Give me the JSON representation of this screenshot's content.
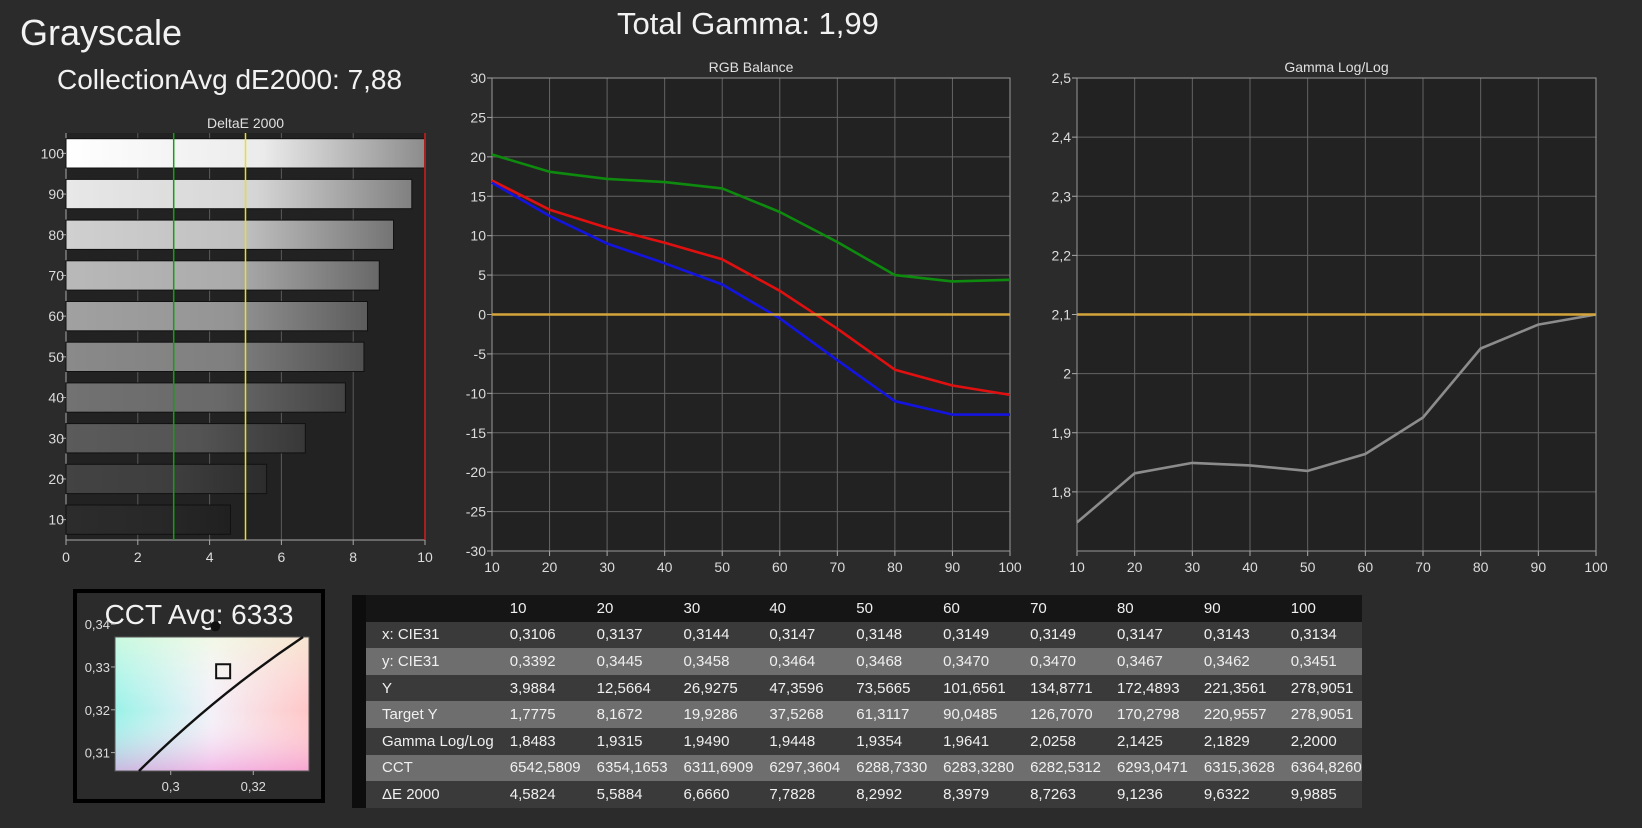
{
  "page": {
    "title": "Grayscale",
    "total_gamma": "Total Gamma: 1,99",
    "collection_avg": "CollectionAvg dE2000: 7,88",
    "cct_avg": "CCT Avg: 6333"
  },
  "colors": {
    "background": "#2b2b2b",
    "plot_bg": "#222222",
    "red": "#e01010",
    "green": "#0e8a0e",
    "blue": "#1414e0",
    "target": "#d4a53a",
    "gamma_line": "#8c8c8c",
    "de_green_line": "#10a010",
    "de_yellow_line": "#e8e020",
    "de_red_line": "#d02020"
  },
  "chart_data": [
    {
      "id": "deltae",
      "type": "bar",
      "title": "DeltaE 2000",
      "orientation": "horizontal",
      "categories": [
        "100",
        "90",
        "80",
        "70",
        "60",
        "50",
        "40",
        "30",
        "20",
        "10"
      ],
      "values": [
        9.9885,
        9.6322,
        9.1236,
        8.7263,
        8.3979,
        8.2992,
        7.7828,
        6.666,
        5.5884,
        4.5824
      ],
      "gray_levels": [
        100,
        90,
        80,
        70,
        60,
        50,
        40,
        30,
        20,
        10
      ],
      "xlim": [
        0,
        10
      ],
      "xticks": [
        "0",
        "2",
        "4",
        "6",
        "8",
        "10"
      ],
      "reference_lines": [
        3,
        5,
        10
      ],
      "grid": true
    },
    {
      "id": "rgb",
      "type": "line",
      "title": "RGB Balance",
      "x": [
        10,
        20,
        30,
        40,
        50,
        60,
        70,
        80,
        90,
        100
      ],
      "xticks": [
        "10",
        "20",
        "30",
        "40",
        "50",
        "60",
        "70",
        "80",
        "90",
        "100"
      ],
      "ylim": [
        -30,
        30
      ],
      "yticks": [
        "30",
        "25",
        "20",
        "15",
        "10",
        "5",
        "0",
        "-5",
        "-10",
        "-15",
        "-20",
        "-25",
        "-30"
      ],
      "series": [
        {
          "color": "green",
          "values": [
            20.3,
            18.1,
            17.2,
            16.8,
            16.0,
            13.0,
            9.2,
            5.0,
            4.2,
            4.4
          ]
        },
        {
          "color": "red",
          "values": [
            17.0,
            13.3,
            11.0,
            9.1,
            7.0,
            3.0,
            -1.8,
            -7.0,
            -9.0,
            -10.2
          ]
        },
        {
          "color": "blue",
          "values": [
            16.7,
            12.5,
            9.0,
            6.5,
            3.8,
            -0.5,
            -5.8,
            -11.0,
            -12.7,
            -12.7
          ]
        },
        {
          "color": "target",
          "values": [
            0,
            0,
            0,
            0,
            0,
            0,
            0,
            0,
            0,
            0
          ]
        }
      ],
      "grid": true
    },
    {
      "id": "gamma",
      "type": "line",
      "title": "Gamma Log/Log",
      "x": [
        10,
        20,
        30,
        40,
        50,
        60,
        70,
        80,
        90,
        100
      ],
      "xticks": [
        "10",
        "20",
        "30",
        "40",
        "50",
        "60",
        "70",
        "80",
        "90",
        "100"
      ],
      "ylim": [
        1.8,
        2.6
      ],
      "yticks": [
        "2,5",
        "2,4",
        "2,3",
        "2,2",
        "2,1",
        "2",
        "1,9",
        "1,8"
      ],
      "series": [
        {
          "color": "gamma_line",
          "values": [
            1.8483,
            1.9315,
            1.949,
            1.9448,
            1.9354,
            1.9641,
            2.0258,
            2.1425,
            2.1829,
            2.2
          ]
        },
        {
          "color": "target",
          "values": [
            2.2,
            2.2,
            2.2,
            2.2,
            2.2,
            2.2,
            2.2,
            2.2,
            2.2,
            2.2
          ]
        }
      ],
      "grid": true
    },
    {
      "id": "cie",
      "type": "scatter",
      "xticks": [
        "0,3",
        "0,32"
      ],
      "yticks": [
        "0,34",
        "0,33",
        "0,32",
        "0,31"
      ],
      "xlim": [
        0.2865,
        0.3335
      ],
      "ylim": [
        0.3057,
        0.337
      ],
      "points": [
        {
          "marker": "dot",
          "x": 0.3108,
          "y": 0.3395
        },
        {
          "marker": "square",
          "x": 0.3127,
          "y": 0.329
        }
      ]
    },
    {
      "id": "table",
      "type": "table",
      "columns": [
        "10",
        "20",
        "30",
        "40",
        "50",
        "60",
        "70",
        "80",
        "90",
        "100"
      ],
      "rows": [
        {
          "label": "x: CIE31",
          "values": [
            "0,3106",
            "0,3137",
            "0,3144",
            "0,3147",
            "0,3148",
            "0,3149",
            "0,3149",
            "0,3147",
            "0,3143",
            "0,3134"
          ]
        },
        {
          "label": "y: CIE31",
          "values": [
            "0,3392",
            "0,3445",
            "0,3458",
            "0,3464",
            "0,3468",
            "0,3470",
            "0,3470",
            "0,3467",
            "0,3462",
            "0,3451"
          ]
        },
        {
          "label": "Y",
          "values": [
            "3,9884",
            "12,5664",
            "26,9275",
            "47,3596",
            "73,5665",
            "101,6561",
            "134,8771",
            "172,4893",
            "221,3561",
            "278,9051"
          ]
        },
        {
          "label": "Target Y",
          "values": [
            "1,7775",
            "8,1672",
            "19,9286",
            "37,5268",
            "61,3117",
            "90,0485",
            "126,7070",
            "170,2798",
            "220,9557",
            "278,9051"
          ]
        },
        {
          "label": "Gamma Log/Log",
          "values": [
            "1,8483",
            "1,9315",
            "1,9490",
            "1,9448",
            "1,9354",
            "1,9641",
            "2,0258",
            "2,1425",
            "2,1829",
            "2,2000"
          ]
        },
        {
          "label": "CCT",
          "values": [
            "6542,5809",
            "6354,1653",
            "6311,6909",
            "6297,3604",
            "6288,7330",
            "6283,3280",
            "6282,5312",
            "6293,0471",
            "6315,3628",
            "6364,8260"
          ]
        },
        {
          "label": "ΔE 2000",
          "values": [
            "4,5824",
            "5,5884",
            "6,6660",
            "7,7828",
            "8,2992",
            "8,3979",
            "8,7263",
            "9,1236",
            "9,6322",
            "9,9885"
          ]
        }
      ]
    }
  ]
}
